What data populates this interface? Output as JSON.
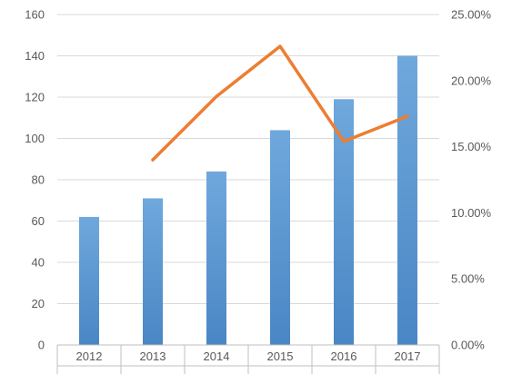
{
  "chart_data": {
    "type": "bar",
    "categories": [
      "2012",
      "2013",
      "2014",
      "2015",
      "2016",
      "2017"
    ],
    "series": [
      {
        "type": "bar",
        "axis": "left",
        "color": "#5b9bd5",
        "values": [
          62,
          71,
          84,
          104,
          119,
          140
        ]
      },
      {
        "type": "line",
        "axis": "right",
        "color": "#ed7d31",
        "values": [
          null,
          0.14,
          0.188,
          0.226,
          0.154,
          0.173
        ]
      }
    ],
    "y_left": {
      "range": [
        0,
        160
      ],
      "ticks": [
        "0",
        "20",
        "40",
        "60",
        "80",
        "100",
        "120",
        "140",
        "160"
      ]
    },
    "y_right": {
      "range": [
        0,
        0.25
      ],
      "ticks": [
        "0.00%",
        "5.00%",
        "10.00%",
        "15.00%",
        "20.00%",
        "25.00%"
      ]
    },
    "grid": true,
    "legend": "none"
  }
}
